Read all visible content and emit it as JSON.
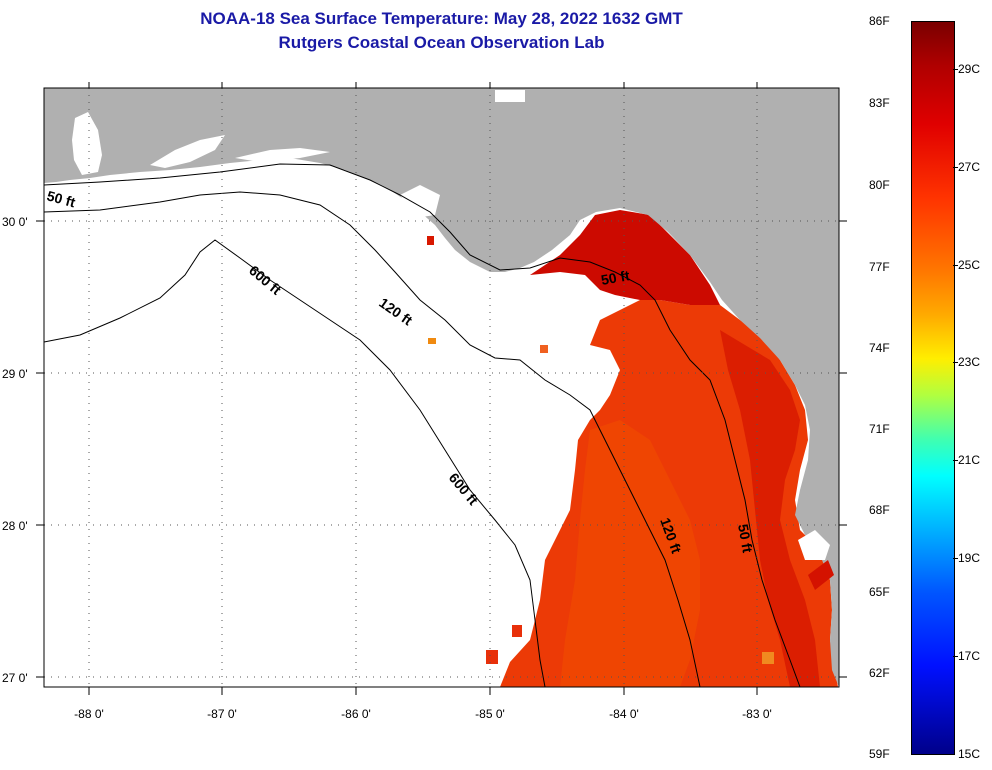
{
  "title": {
    "line1": "NOAA-18 Sea Surface Temperature:  May 28, 2022 1632 GMT",
    "line2": "Rutgers Coastal Ocean Observation Lab"
  },
  "map": {
    "lon_range": [
      -88.35,
      -82.4
    ],
    "lat_range": [
      26.93,
      30.93
    ],
    "lon_ticks": [
      -88,
      -87,
      -86,
      -85,
      -84,
      -83
    ],
    "lon_tick_labels": [
      "-88 0'",
      "-87 0'",
      "-86 0'",
      "-85 0'",
      "-84 0'",
      "-83 0'"
    ],
    "lat_ticks": [
      27,
      28,
      29,
      30
    ],
    "lat_tick_labels": [
      "27 0'",
      "28 0'",
      "29 0'",
      "30 0'"
    ],
    "contour_labels": [
      "50 ft",
      "120 ft",
      "600 ft",
      "600 ft",
      "50 ft",
      "120 ft",
      "50 ft"
    ],
    "colors": {
      "land": "#b0b0b0",
      "no_data": "#ffffff",
      "sst_warm": "#e82400",
      "sst_hot": "#c40000",
      "sst_mid": "#f04a00"
    }
  },
  "colorbar": {
    "fahrenheit": [
      "86F",
      "83F",
      "80F",
      "77F",
      "74F",
      "71F",
      "68F",
      "65F",
      "62F",
      "59F"
    ],
    "celsius": [
      "29C",
      "27C",
      "25C",
      "23C",
      "21C",
      "19C",
      "17C",
      "15C"
    ]
  }
}
